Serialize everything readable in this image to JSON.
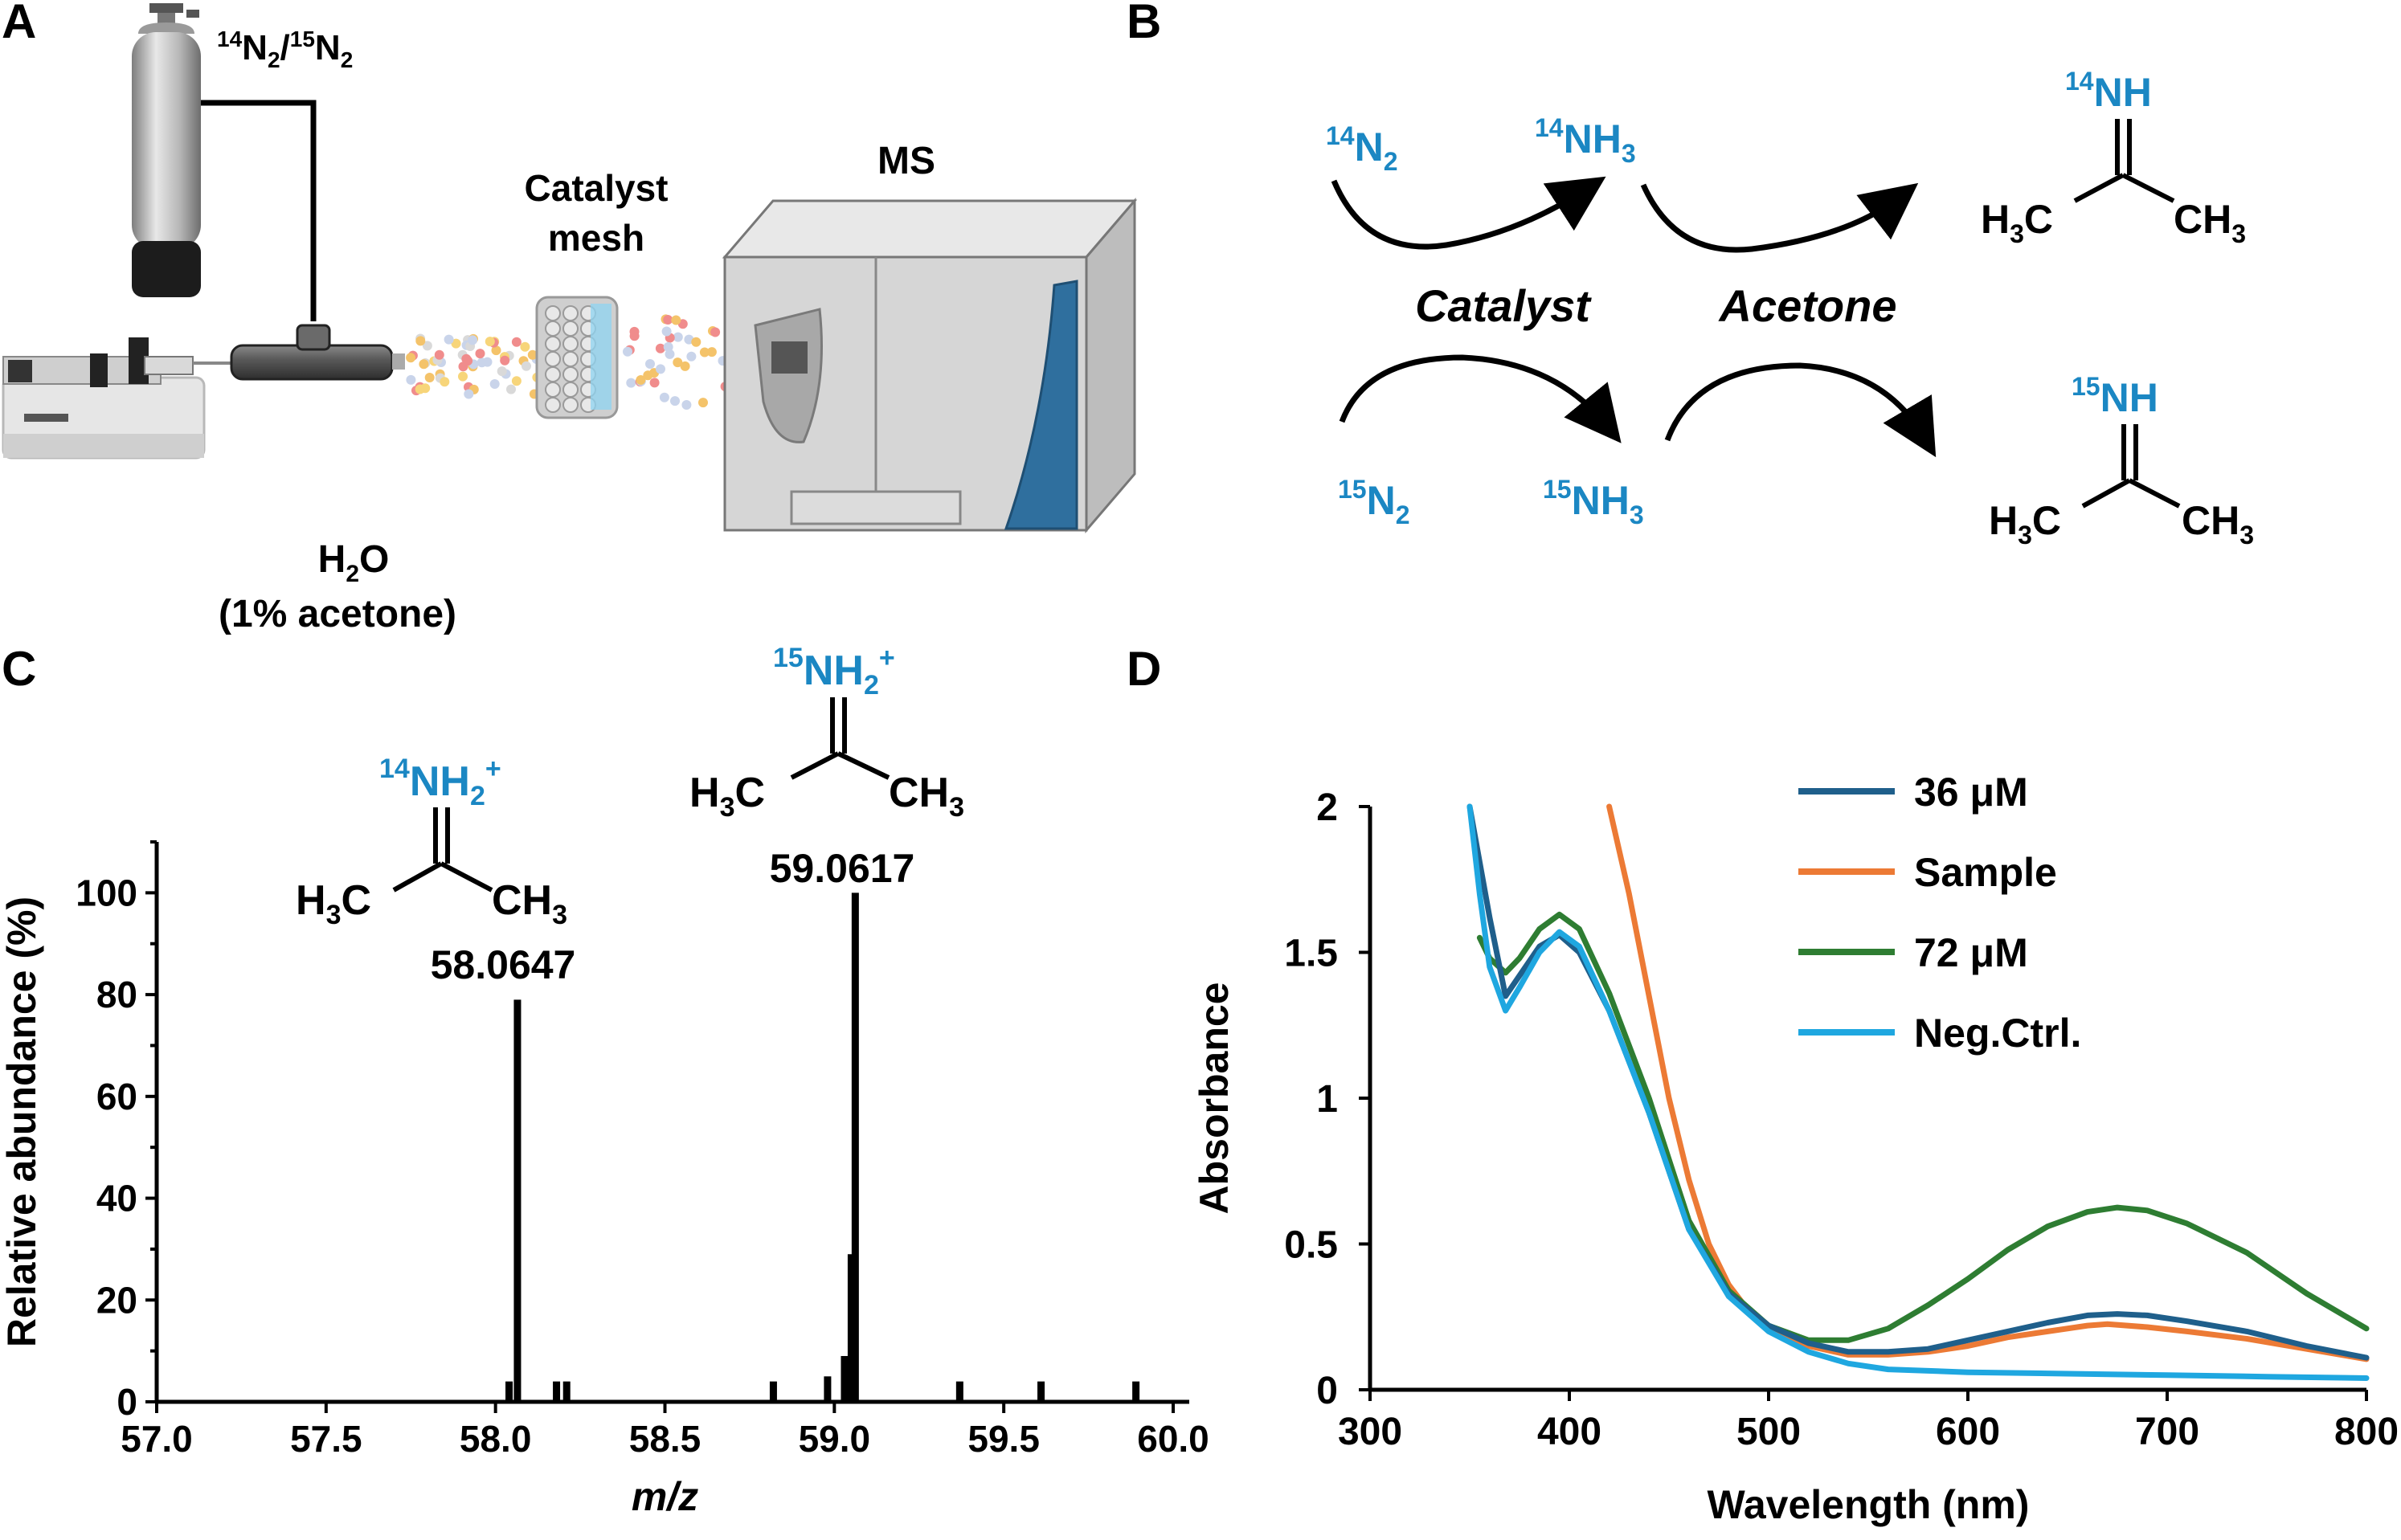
{
  "panels": {
    "a": {
      "letter": "A",
      "gas_label_sup1": "14",
      "gas_label_n2": "N",
      "gas_sub1": "2",
      "gas_label_sup2": "15",
      "gas_sub2": "2",
      "catalyst_label_line1": "Catalyst",
      "catalyst_label_line2": "mesh",
      "ms_label": "MS",
      "water_label": "H",
      "water_sub": "2",
      "water_o": "O",
      "acetone_label": "(1% acetone)"
    },
    "b": {
      "letter": "B",
      "n14_sup": "14",
      "n14": "N",
      "n14_sub": "2",
      "nh14_sup": "14",
      "nh14": "NH",
      "nh14_sub": "3",
      "n15_sup": "15",
      "n15": "N",
      "n15_sub": "2",
      "nh15_sup": "15",
      "nh15": "NH",
      "nh15_sub": "3",
      "catalyst": "Catalyst",
      "acetone": "Acetone",
      "imine14_sup": "14",
      "imine14": "NH",
      "imine15_sup": "15",
      "imine15": "NH",
      "h3c": "H",
      "h3c_sub": "3",
      "h3c_c": "C",
      "ch3_c": "CH",
      "ch3_sub": "3"
    },
    "c": {
      "letter": "C",
      "ion14_sup": "14",
      "ion14": "NH",
      "ion14_sub": "2",
      "ion14_charge": "+",
      "ion15_sup": "15",
      "ion15": "NH",
      "ion15_sub": "2",
      "ion15_charge": "+",
      "peak14_label": "58.0647",
      "peak15_label": "59.0617"
    },
    "d": {
      "letter": "D"
    }
  },
  "chart_data": [
    {
      "type": "bar",
      "title": "",
      "xlabel": "m/z",
      "ylabel": "Relative abundance (%)",
      "xlim": [
        57.0,
        60.0
      ],
      "ylim": [
        0,
        110
      ],
      "xticks": [
        "57.0",
        "57.5",
        "58.0",
        "58.5",
        "59.0",
        "59.5",
        "60.0"
      ],
      "yticks": [
        "0",
        "20",
        "40",
        "60",
        "80",
        "100"
      ],
      "peaks": [
        {
          "x": 58.04,
          "y": 4
        },
        {
          "x": 58.0647,
          "y": 79
        },
        {
          "x": 58.18,
          "y": 4
        },
        {
          "x": 58.21,
          "y": 4
        },
        {
          "x": 58.82,
          "y": 4
        },
        {
          "x": 58.98,
          "y": 5
        },
        {
          "x": 59.03,
          "y": 9
        },
        {
          "x": 59.05,
          "y": 29
        },
        {
          "x": 59.0617,
          "y": 100
        },
        {
          "x": 59.37,
          "y": 4
        },
        {
          "x": 59.61,
          "y": 4
        },
        {
          "x": 59.89,
          "y": 4
        }
      ]
    },
    {
      "type": "line",
      "title": "",
      "xlabel": "Wavelength (nm)",
      "ylabel": "Absorbance",
      "xlim": [
        300,
        800
      ],
      "ylim": [
        0,
        2
      ],
      "xticks": [
        "300",
        "400",
        "500",
        "600",
        "700",
        "800"
      ],
      "yticks": [
        "0",
        "0.5",
        "1",
        "1.5",
        "2"
      ],
      "legend_position": "top-right",
      "series": [
        {
          "name": "36 μM",
          "color": "#1f5f8b",
          "points": [
            [
              350,
              2
            ],
            [
              360,
              1.62
            ],
            [
              368,
              1.35
            ],
            [
              375,
              1.42
            ],
            [
              385,
              1.52
            ],
            [
              395,
              1.56
            ],
            [
              405,
              1.5
            ],
            [
              420,
              1.3
            ],
            [
              440,
              0.95
            ],
            [
              460,
              0.55
            ],
            [
              480,
              0.33
            ],
            [
              500,
              0.22
            ],
            [
              520,
              0.16
            ],
            [
              540,
              0.13
            ],
            [
              560,
              0.13
            ],
            [
              580,
              0.14
            ],
            [
              600,
              0.17
            ],
            [
              620,
              0.2
            ],
            [
              640,
              0.23
            ],
            [
              660,
              0.255
            ],
            [
              675,
              0.26
            ],
            [
              690,
              0.255
            ],
            [
              710,
              0.235
            ],
            [
              740,
              0.2
            ],
            [
              770,
              0.15
            ],
            [
              800,
              0.11
            ]
          ]
        },
        {
          "name": "Sample",
          "color": "#ec7a35",
          "points": [
            [
              420,
              2
            ],
            [
              430,
              1.7
            ],
            [
              440,
              1.35
            ],
            [
              450,
              1.0
            ],
            [
              460,
              0.72
            ],
            [
              470,
              0.5
            ],
            [
              480,
              0.36
            ],
            [
              490,
              0.27
            ],
            [
              500,
              0.21
            ],
            [
              520,
              0.15
            ],
            [
              540,
              0.12
            ],
            [
              560,
              0.12
            ],
            [
              580,
              0.13
            ],
            [
              600,
              0.15
            ],
            [
              620,
              0.18
            ],
            [
              640,
              0.2
            ],
            [
              660,
              0.22
            ],
            [
              670,
              0.225
            ],
            [
              690,
              0.215
            ],
            [
              710,
              0.2
            ],
            [
              740,
              0.175
            ],
            [
              770,
              0.14
            ],
            [
              800,
              0.105
            ]
          ]
        },
        {
          "name": "72 μM",
          "color": "#2e7d32",
          "points": [
            [
              355,
              1.55
            ],
            [
              360,
              1.48
            ],
            [
              368,
              1.43
            ],
            [
              375,
              1.48
            ],
            [
              385,
              1.58
            ],
            [
              395,
              1.63
            ],
            [
              405,
              1.58
            ],
            [
              420,
              1.36
            ],
            [
              440,
              1.0
            ],
            [
              460,
              0.58
            ],
            [
              480,
              0.34
            ],
            [
              500,
              0.22
            ],
            [
              520,
              0.17
            ],
            [
              540,
              0.17
            ],
            [
              560,
              0.21
            ],
            [
              580,
              0.29
            ],
            [
              600,
              0.38
            ],
            [
              620,
              0.48
            ],
            [
              640,
              0.56
            ],
            [
              660,
              0.61
            ],
            [
              675,
              0.625
            ],
            [
              690,
              0.615
            ],
            [
              710,
              0.57
            ],
            [
              740,
              0.47
            ],
            [
              770,
              0.33
            ],
            [
              800,
              0.21
            ]
          ]
        },
        {
          "name": "Neg.Ctrl.",
          "color": "#1fa7e0",
          "points": [
            [
              350,
              2
            ],
            [
              355,
              1.7
            ],
            [
              360,
              1.45
            ],
            [
              368,
              1.3
            ],
            [
              375,
              1.38
            ],
            [
              385,
              1.5
            ],
            [
              395,
              1.57
            ],
            [
              405,
              1.52
            ],
            [
              420,
              1.3
            ],
            [
              440,
              0.95
            ],
            [
              460,
              0.55
            ],
            [
              480,
              0.32
            ],
            [
              500,
              0.2
            ],
            [
              520,
              0.13
            ],
            [
              540,
              0.09
            ],
            [
              560,
              0.07
            ],
            [
              600,
              0.06
            ],
            [
              650,
              0.055
            ],
            [
              700,
              0.05
            ],
            [
              750,
              0.045
            ],
            [
              800,
              0.04
            ]
          ]
        }
      ]
    }
  ]
}
